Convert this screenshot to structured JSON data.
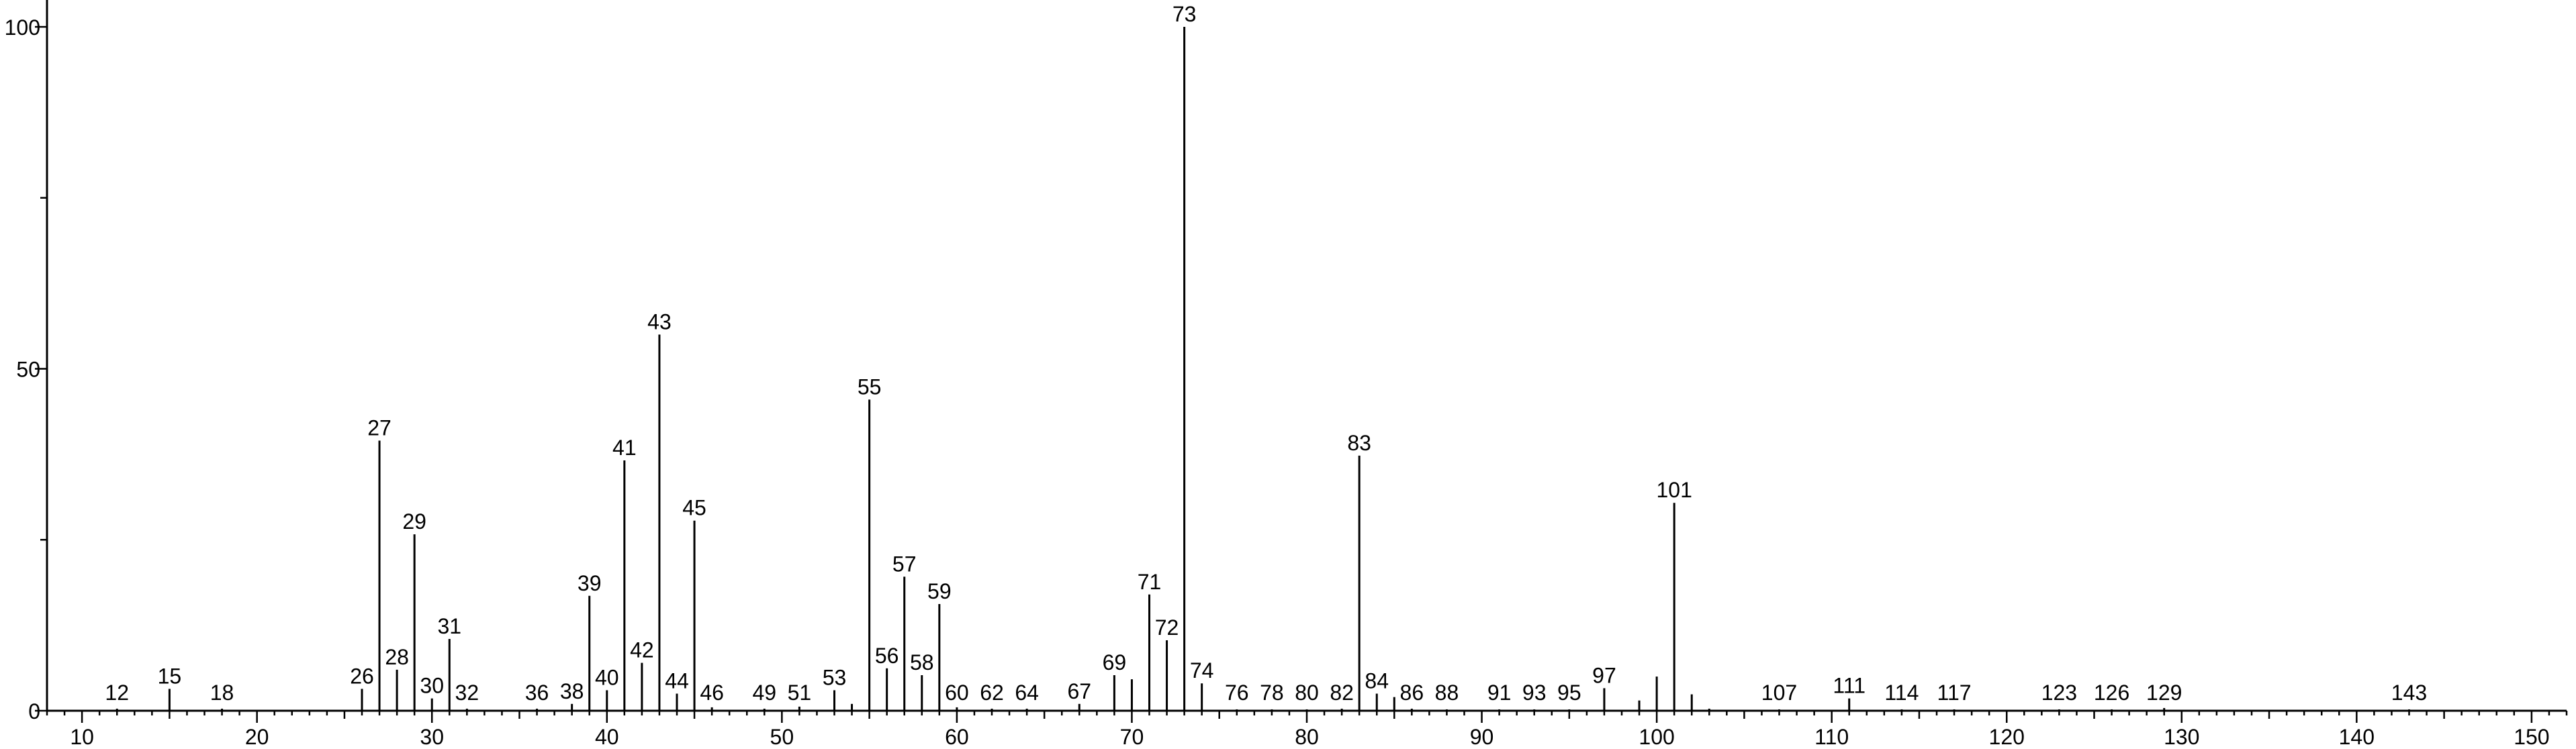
{
  "chart_data": {
    "type": "bar",
    "title": "",
    "xlabel": "",
    "ylabel": "",
    "xlim": [
      8,
      152
    ],
    "ylim": [
      0,
      100
    ],
    "x_ticks": [
      10,
      20,
      30,
      40,
      50,
      60,
      70,
      80,
      90,
      100,
      110,
      120,
      130,
      140,
      150
    ],
    "x_minor_step": 1,
    "y_ticks": [
      0,
      50,
      100
    ],
    "y_minor_ticks": [
      25,
      75
    ],
    "grid": false,
    "peaks": [
      {
        "mz": 12,
        "intensity": 0.3,
        "label": "12"
      },
      {
        "mz": 15,
        "intensity": 3.2,
        "label": "15"
      },
      {
        "mz": 18,
        "intensity": 0.3,
        "label": "18"
      },
      {
        "mz": 26,
        "intensity": 3.2,
        "label": "26"
      },
      {
        "mz": 27,
        "intensity": 39.5,
        "label": "27"
      },
      {
        "mz": 28,
        "intensity": 6.0,
        "label": "28"
      },
      {
        "mz": 29,
        "intensity": 25.8,
        "label": "29"
      },
      {
        "mz": 30,
        "intensity": 1.8,
        "label": "30"
      },
      {
        "mz": 31,
        "intensity": 10.5,
        "label": "31"
      },
      {
        "mz": 32,
        "intensity": 0.3,
        "label": "32"
      },
      {
        "mz": 36,
        "intensity": 0.3,
        "label": "36"
      },
      {
        "mz": 38,
        "intensity": 1.0,
        "label": "38"
      },
      {
        "mz": 39,
        "intensity": 16.8,
        "label": "39"
      },
      {
        "mz": 40,
        "intensity": 3.0,
        "label": "40"
      },
      {
        "mz": 41,
        "intensity": 36.6,
        "label": "41"
      },
      {
        "mz": 42,
        "intensity": 7.0,
        "label": "42"
      },
      {
        "mz": 43,
        "intensity": 55.0,
        "label": "43"
      },
      {
        "mz": 44,
        "intensity": 2.5,
        "label": "44"
      },
      {
        "mz": 45,
        "intensity": 27.8,
        "label": "45"
      },
      {
        "mz": 46,
        "intensity": 0.5,
        "label": "46"
      },
      {
        "mz": 49,
        "intensity": 0.3,
        "label": "49"
      },
      {
        "mz": 51,
        "intensity": 0.6,
        "label": "51"
      },
      {
        "mz": 53,
        "intensity": 3.0,
        "label": "53"
      },
      {
        "mz": 54,
        "intensity": 1.0,
        "label": ""
      },
      {
        "mz": 55,
        "intensity": 45.5,
        "label": "55"
      },
      {
        "mz": 56,
        "intensity": 6.2,
        "label": "56"
      },
      {
        "mz": 57,
        "intensity": 19.6,
        "label": "57"
      },
      {
        "mz": 58,
        "intensity": 5.2,
        "label": "58"
      },
      {
        "mz": 59,
        "intensity": 15.6,
        "label": "59"
      },
      {
        "mz": 60,
        "intensity": 0.5,
        "label": "60"
      },
      {
        "mz": 62,
        "intensity": 0.3,
        "label": "62"
      },
      {
        "mz": 64,
        "intensity": 0.3,
        "label": "64"
      },
      {
        "mz": 67,
        "intensity": 1.0,
        "label": "67"
      },
      {
        "mz": 69,
        "intensity": 5.2,
        "label": "69"
      },
      {
        "mz": 70,
        "intensity": 4.6,
        "label": ""
      },
      {
        "mz": 71,
        "intensity": 17.0,
        "label": "71"
      },
      {
        "mz": 72,
        "intensity": 10.3,
        "label": "72"
      },
      {
        "mz": 73,
        "intensity": 100,
        "label": "73"
      },
      {
        "mz": 74,
        "intensity": 4.0,
        "label": "74"
      },
      {
        "mz": 76,
        "intensity": 0.2,
        "label": "76"
      },
      {
        "mz": 78,
        "intensity": 0.2,
        "label": "78"
      },
      {
        "mz": 80,
        "intensity": 0.2,
        "label": "80"
      },
      {
        "mz": 82,
        "intensity": 0.3,
        "label": "82"
      },
      {
        "mz": 83,
        "intensity": 37.3,
        "label": "83"
      },
      {
        "mz": 84,
        "intensity": 2.5,
        "label": "84"
      },
      {
        "mz": 85,
        "intensity": 2.0,
        "label": ""
      },
      {
        "mz": 86,
        "intensity": 0.3,
        "label": "86"
      },
      {
        "mz": 88,
        "intensity": 0.2,
        "label": "88"
      },
      {
        "mz": 91,
        "intensity": 0.2,
        "label": "91"
      },
      {
        "mz": 93,
        "intensity": 0.2,
        "label": "93"
      },
      {
        "mz": 95,
        "intensity": 0.2,
        "label": "95"
      },
      {
        "mz": 97,
        "intensity": 3.3,
        "label": "97"
      },
      {
        "mz": 99,
        "intensity": 1.5,
        "label": ""
      },
      {
        "mz": 100,
        "intensity": 5.0,
        "label": ""
      },
      {
        "mz": 101,
        "intensity": 30.4,
        "label": "101"
      },
      {
        "mz": 102,
        "intensity": 2.4,
        "label": ""
      },
      {
        "mz": 103,
        "intensity": 0.3,
        "label": ""
      },
      {
        "mz": 107,
        "intensity": 0.2,
        "label": "107"
      },
      {
        "mz": 111,
        "intensity": 1.8,
        "label": "111"
      },
      {
        "mz": 114,
        "intensity": 0.2,
        "label": "114"
      },
      {
        "mz": 117,
        "intensity": 0.2,
        "label": "117"
      },
      {
        "mz": 123,
        "intensity": 0.2,
        "label": "123"
      },
      {
        "mz": 126,
        "intensity": 0.2,
        "label": "126"
      },
      {
        "mz": 129,
        "intensity": 0.4,
        "label": "129"
      },
      {
        "mz": 143,
        "intensity": 0.2,
        "label": "143"
      }
    ],
    "colors": {
      "bar": "#000000",
      "axis": "#000000",
      "background": "#ffffff"
    }
  }
}
